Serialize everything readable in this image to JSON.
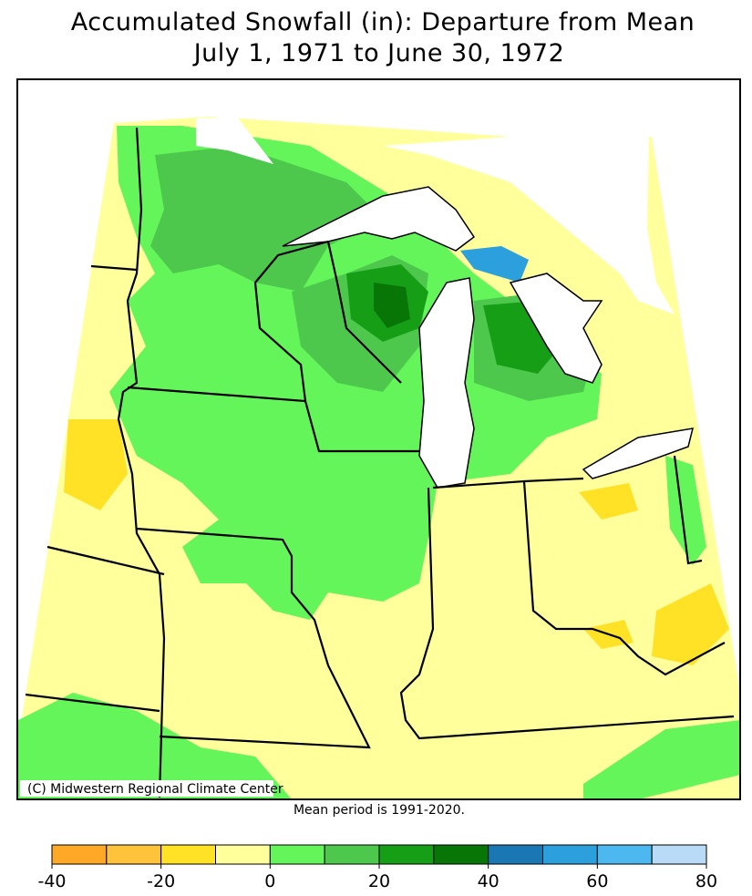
{
  "title": "Accumulated Snowfall (in): Departure from Mean",
  "subtitle": "July 1, 1971 to June 30, 1972",
  "credit": "(C) Midwestern Regional Climate Center",
  "note": "Mean period is 1991-2020.",
  "legend": {
    "bounds": [
      -40,
      -30,
      -20,
      -10,
      0,
      10,
      20,
      30,
      40,
      50,
      60,
      70,
      80
    ],
    "colors": [
      "#ffa726",
      "#ffc23a",
      "#ffe126",
      "#ffff9c",
      "#63f55a",
      "#4dc84d",
      "#179e17",
      "#077607",
      "#1b77b4",
      "#2c9fdd",
      "#4db8f0",
      "#b9dbf7"
    ],
    "ticks": [
      -40,
      -20,
      0,
      20,
      40,
      60,
      80
    ]
  }
}
